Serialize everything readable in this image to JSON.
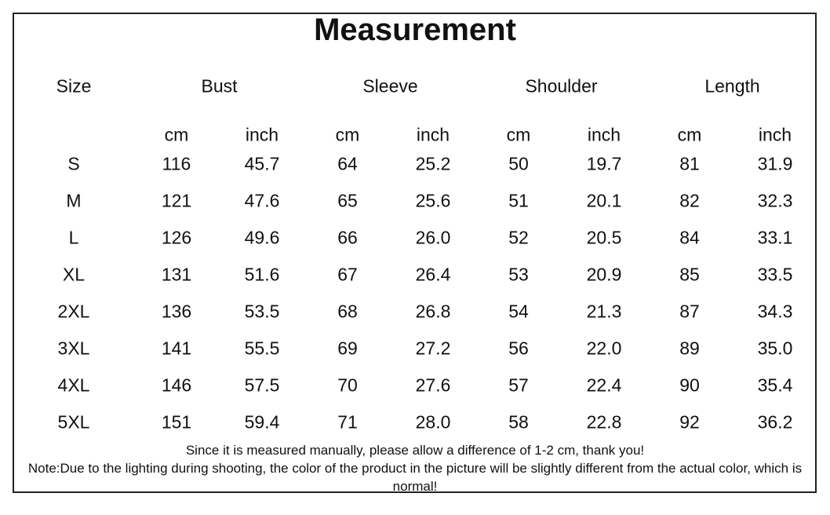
{
  "title": "Measurement",
  "table": {
    "size_header": "Size",
    "groups": [
      "Bust",
      "Sleeve",
      "Shoulder",
      "Length"
    ],
    "units": [
      "cm",
      "inch",
      "cm",
      "inch",
      "cm",
      "inch",
      "cm",
      "inch"
    ],
    "rows": [
      [
        "S",
        "116",
        "45.7",
        "64",
        "25.2",
        "50",
        "19.7",
        "81",
        "31.9"
      ],
      [
        "M",
        "121",
        "47.6",
        "65",
        "25.6",
        "51",
        "20.1",
        "82",
        "32.3"
      ],
      [
        "L",
        "126",
        "49.6",
        "66",
        "26.0",
        "52",
        "20.5",
        "84",
        "33.1"
      ],
      [
        "XL",
        "131",
        "51.6",
        "67",
        "26.4",
        "53",
        "20.9",
        "85",
        "33.5"
      ],
      [
        "2XL",
        "136",
        "53.5",
        "68",
        "26.8",
        "54",
        "21.3",
        "87",
        "34.3"
      ],
      [
        "3XL",
        "141",
        "55.5",
        "69",
        "27.2",
        "56",
        "22.0",
        "89",
        "35.0"
      ],
      [
        "4XL",
        "146",
        "57.5",
        "70",
        "27.6",
        "57",
        "22.4",
        "90",
        "35.4"
      ],
      [
        "5XL",
        "151",
        "59.4",
        "71",
        "28.0",
        "58",
        "22.8",
        "92",
        "36.2"
      ]
    ]
  },
  "notes": [
    "Since it is measured manually, please allow a difference of 1-2 cm, thank you!",
    "Note:Due to the lighting during shooting, the color of the product in the picture will be slightly different from the actual color, which is normal!"
  ]
}
